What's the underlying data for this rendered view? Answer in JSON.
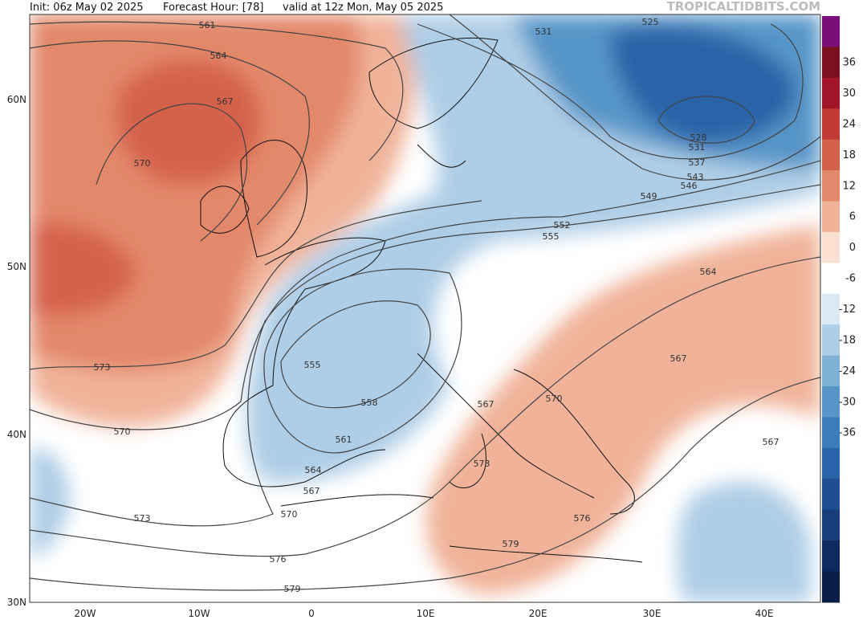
{
  "header": {
    "init": "Init: 06z May 02 2025",
    "forecast": "Forecast Hour: [78]",
    "valid": "valid at 12z Mon, May 05 2025",
    "watermark": "TROPICALTIDBITS.COM"
  },
  "axes": {
    "lon_labels": [
      "20W",
      "10W",
      "0",
      "10E",
      "20E",
      "30E",
      "40E"
    ],
    "lat_labels": [
      "60N",
      "50N",
      "40N",
      "30N"
    ]
  },
  "colorbar": {
    "ticks": [
      36,
      30,
      24,
      18,
      12,
      6,
      0,
      -6,
      -12,
      -18,
      -24,
      -30,
      -36
    ],
    "colors": [
      "#7a0f7a",
      "#7c1020",
      "#a3162a",
      "#c23a33",
      "#d4624b",
      "#e3886b",
      "#f0b39a",
      "#fbe0d2",
      "#ffffff",
      "#dbe9f4",
      "#aecde6",
      "#7fb0d6",
      "#5795c8",
      "#3a7cbc",
      "#2a63a8",
      "#1f4d92",
      "#173d7c",
      "#0e2a5e",
      "#0a1e48"
    ]
  },
  "contour_labels": [
    561,
    564,
    567,
    570,
    573,
    570,
    573,
    576,
    579,
    570,
    567,
    564,
    561,
    558,
    555,
    552,
    555,
    549,
    546,
    543,
    537,
    531,
    528,
    531,
    525,
    564,
    567,
    567,
    570,
    573,
    576,
    579,
    567
  ]
}
